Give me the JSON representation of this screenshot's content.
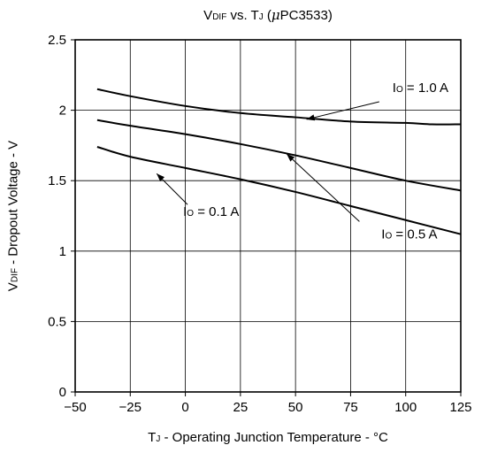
{
  "chart_data": {
    "type": "line",
    "title": {
      "main_v": "V",
      "main_v_sub": "DIF",
      "vs": " vs. T",
      "tj_sub": "J",
      "paren_open": " (",
      "mu": "μ",
      "part": "PC3533)"
    },
    "ylabel": {
      "v": "V",
      "v_sub": "DIF",
      "rest": " - Dropout Voltage - V"
    },
    "xlabel": {
      "t": "T",
      "t_sub": "J",
      "rest": " - Operating Junction Temperature - °C"
    },
    "xlim": [
      -50,
      125
    ],
    "ylim": [
      0,
      2.5
    ],
    "x_ticks": [
      -50,
      -25,
      0,
      25,
      50,
      75,
      100,
      125
    ],
    "x_tick_labels": [
      "−50",
      "−25",
      "0",
      "25",
      "50",
      "75",
      "100",
      "125"
    ],
    "y_ticks": [
      0,
      0.5,
      1,
      1.5,
      2,
      2.5
    ],
    "y_tick_labels": [
      "0",
      "0.5",
      "1",
      "1.5",
      "2",
      "2.5"
    ],
    "grid": true,
    "legend": "none",
    "line_color": "#000000",
    "series": [
      {
        "label_pre": "I",
        "label_sub": "O",
        "label_post": " = 1.0 A",
        "x": [
          -40,
          -25,
          0,
          25,
          50,
          75,
          100,
          112,
          125
        ],
        "y": [
          2.15,
          2.1,
          2.03,
          1.98,
          1.95,
          1.92,
          1.91,
          1.9,
          1.9
        ]
      },
      {
        "label_pre": "I",
        "label_sub": "O",
        "label_post": " = 0.5 A",
        "x": [
          -40,
          -25,
          0,
          25,
          50,
          75,
          100,
          125
        ],
        "y": [
          1.93,
          1.89,
          1.83,
          1.76,
          1.68,
          1.59,
          1.5,
          1.43
        ]
      },
      {
        "label_pre": "I",
        "label_sub": "O",
        "label_post": " = 0.1 A",
        "x": [
          -40,
          -25,
          0,
          25,
          50,
          75,
          100,
          125
        ],
        "y": [
          1.74,
          1.67,
          1.59,
          1.51,
          1.42,
          1.32,
          1.22,
          1.12
        ]
      }
    ]
  }
}
